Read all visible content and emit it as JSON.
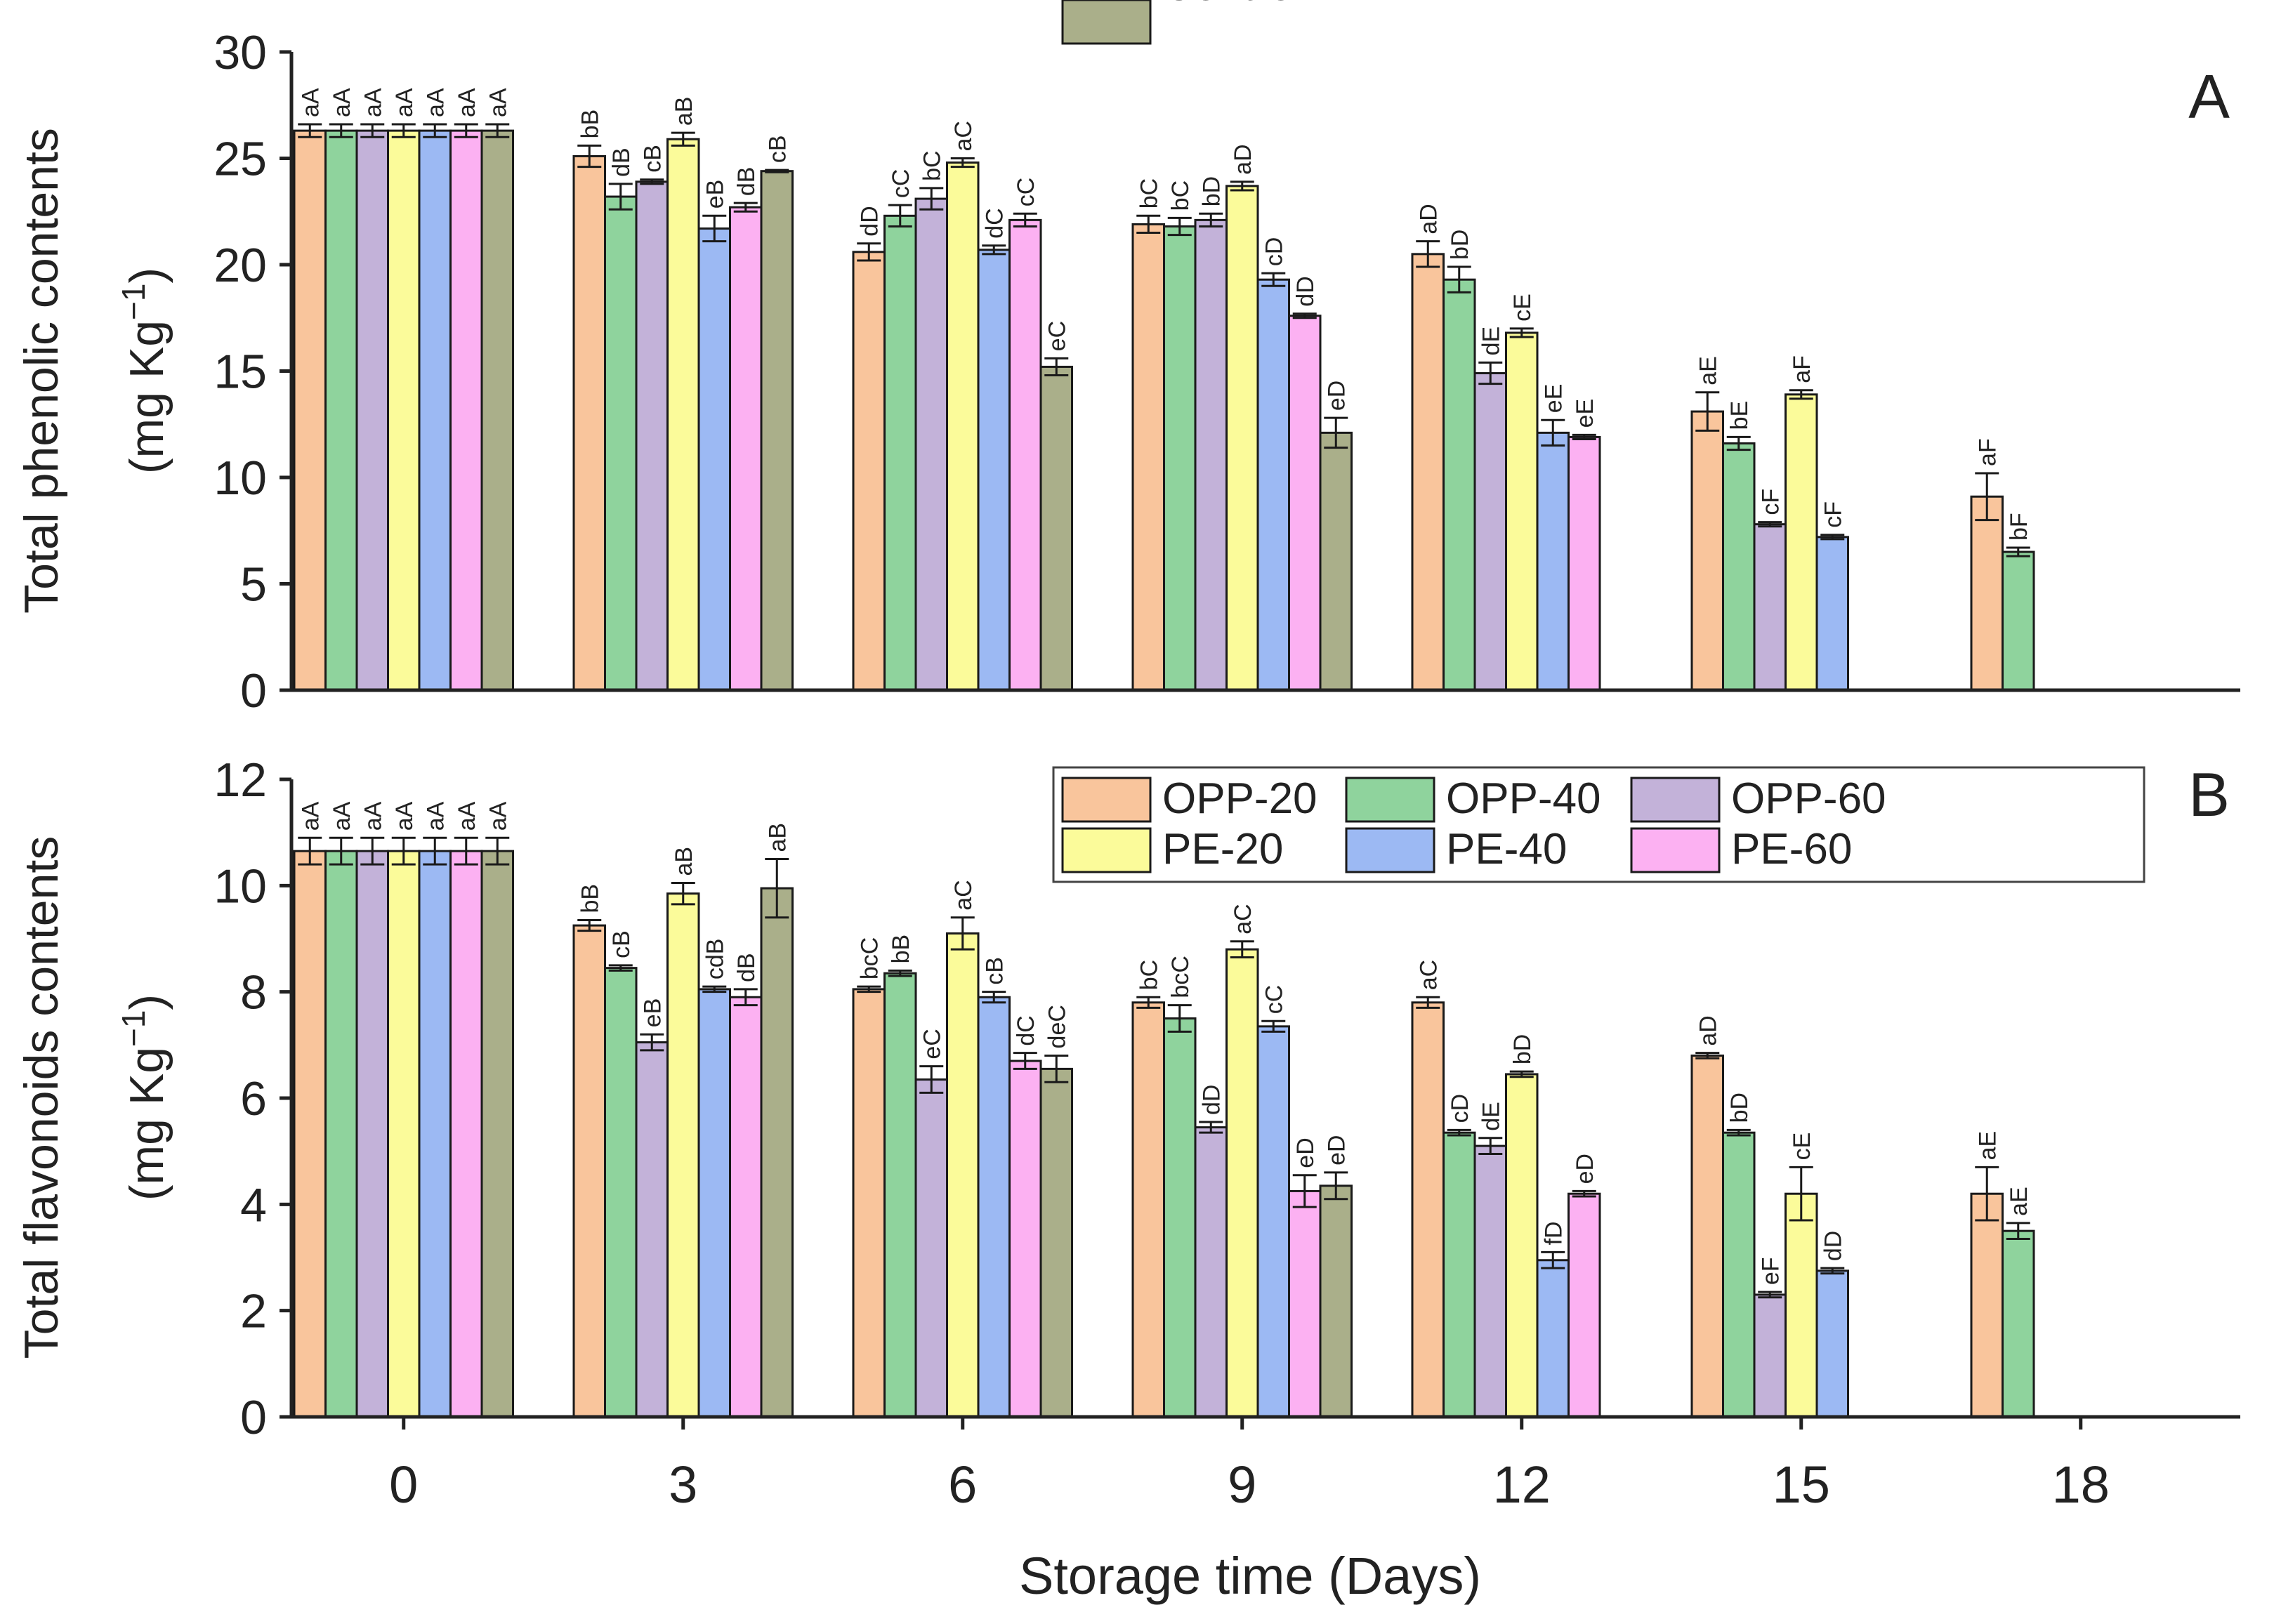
{
  "figure": {
    "xlabel": "Storage time (Days)",
    "days": [
      "0",
      "3",
      "6",
      "9",
      "12",
      "15",
      "18"
    ],
    "treatments": [
      "OPP-20",
      "OPP-40",
      "OPP-60",
      "PE-20",
      "PE-40",
      "PE-60",
      "Control"
    ],
    "colors": {
      "OPP-20": "#f9c59c",
      "OPP-40": "#8fd39d",
      "OPP-60": "#c3b2d9",
      "PE-20": "#fbfb9a",
      "PE-40": "#9cb9f3",
      "PE-60": "#fcb1f2",
      "Control": "#aaaf8a"
    }
  },
  "chart_data": [
    {
      "type": "bar",
      "panel": "A",
      "ylabel_line1": "Total phenolic contents",
      "ylabel_line2": "(mg Kg",
      "ylabel_sup": "−1",
      "ylabel_close": ")",
      "ylim": [
        0,
        30
      ],
      "yticks": [
        0,
        5,
        10,
        15,
        20,
        25,
        30
      ],
      "categories": [
        "0",
        "3",
        "6",
        "9",
        "12",
        "15",
        "18"
      ],
      "series": [
        {
          "name": "OPP-20",
          "values": [
            26.3,
            25.1,
            20.6,
            21.9,
            20.5,
            13.1,
            9.1
          ],
          "errors": [
            0.3,
            0.5,
            0.4,
            0.4,
            0.6,
            0.9,
            1.1
          ],
          "labels": [
            "aA",
            "bB",
            "dD",
            "bC",
            "aD",
            "aE",
            "aF"
          ]
        },
        {
          "name": "OPP-40",
          "values": [
            26.3,
            23.2,
            22.3,
            21.8,
            19.3,
            11.6,
            6.5
          ],
          "errors": [
            0.3,
            0.6,
            0.5,
            0.4,
            0.6,
            0.3,
            0.2
          ],
          "labels": [
            "aA",
            "dB",
            "cC",
            "bC",
            "bD",
            "bE",
            "bF"
          ]
        },
        {
          "name": "OPP-60",
          "values": [
            26.3,
            23.9,
            23.1,
            22.1,
            14.9,
            7.8,
            null
          ],
          "errors": [
            0.3,
            0.1,
            0.5,
            0.3,
            0.5,
            0.1,
            null
          ],
          "labels": [
            "aA",
            "cB",
            "bC",
            "bD",
            "dE",
            "cF",
            ""
          ]
        },
        {
          "name": "PE-20",
          "values": [
            26.3,
            25.9,
            24.8,
            23.7,
            16.8,
            13.9,
            null
          ],
          "errors": [
            0.3,
            0.3,
            0.2,
            0.2,
            0.2,
            0.2,
            null
          ],
          "labels": [
            "aA",
            "aB",
            "aC",
            "aD",
            "cE",
            "aF",
            ""
          ]
        },
        {
          "name": "PE-40",
          "values": [
            26.3,
            21.7,
            20.7,
            19.3,
            12.1,
            7.2,
            null
          ],
          "errors": [
            0.3,
            0.6,
            0.2,
            0.3,
            0.6,
            0.1,
            null
          ],
          "labels": [
            "aA",
            "eB",
            "dC",
            "cD",
            "eE",
            "cF",
            ""
          ]
        },
        {
          "name": "PE-60",
          "values": [
            26.3,
            22.7,
            22.1,
            17.6,
            11.9,
            null,
            null
          ],
          "errors": [
            0.3,
            0.2,
            0.3,
            0.1,
            0.1,
            null,
            null
          ],
          "labels": [
            "aA",
            "dB",
            "cC",
            "dD",
            "eE",
            "",
            ""
          ]
        },
        {
          "name": "Control",
          "values": [
            26.3,
            24.4,
            15.2,
            12.1,
            null,
            null,
            null
          ],
          "errors": [
            0.3,
            0.05,
            0.4,
            0.7,
            null,
            null,
            null
          ],
          "labels": [
            "aA",
            "cB",
            "eC",
            "eD",
            "",
            "",
            ""
          ]
        }
      ]
    },
    {
      "type": "bar",
      "panel": "B",
      "ylabel_line1": "Total flavonoids contents",
      "ylabel_line2": "(mg Kg",
      "ylabel_sup": "−1",
      "ylabel_close": ")",
      "ylim": [
        0,
        12
      ],
      "yticks": [
        0,
        2,
        4,
        6,
        8,
        10,
        12
      ],
      "legend_position": "top-right",
      "categories": [
        "0",
        "3",
        "6",
        "9",
        "12",
        "15",
        "18"
      ],
      "series": [
        {
          "name": "OPP-20",
          "values": [
            10.65,
            9.25,
            8.05,
            7.8,
            7.8,
            6.8,
            4.2
          ],
          "errors": [
            0.25,
            0.1,
            0.05,
            0.1,
            0.1,
            0.05,
            0.5
          ],
          "labels": [
            "aA",
            "bB",
            "bcC",
            "bC",
            "aC",
            "aD",
            "aE"
          ]
        },
        {
          "name": "OPP-40",
          "values": [
            10.65,
            8.45,
            8.35,
            7.5,
            5.35,
            5.35,
            3.5
          ],
          "errors": [
            0.25,
            0.05,
            0.05,
            0.25,
            0.05,
            0.05,
            0.15
          ],
          "labels": [
            "aA",
            "cB",
            "bB",
            "bcC",
            "cD",
            "bD",
            "aE"
          ]
        },
        {
          "name": "OPP-60",
          "values": [
            10.65,
            7.05,
            6.35,
            5.45,
            5.1,
            2.3,
            null
          ],
          "errors": [
            0.25,
            0.15,
            0.25,
            0.1,
            0.15,
            0.05,
            null
          ],
          "labels": [
            "aA",
            "eB",
            "eC",
            "dD",
            "dE",
            "eF",
            ""
          ]
        },
        {
          "name": "PE-20",
          "values": [
            10.65,
            9.85,
            9.1,
            8.8,
            6.45,
            4.2,
            null
          ],
          "errors": [
            0.25,
            0.2,
            0.3,
            0.15,
            0.05,
            0.5,
            null
          ],
          "labels": [
            "aA",
            "aB",
            "aC",
            "aC",
            "bD",
            "cE",
            ""
          ]
        },
        {
          "name": "PE-40",
          "values": [
            10.65,
            8.05,
            7.9,
            7.35,
            2.95,
            2.75,
            null
          ],
          "errors": [
            0.25,
            0.05,
            0.1,
            0.1,
            0.15,
            0.05,
            null
          ],
          "labels": [
            "aA",
            "cdB",
            "cB",
            "cC",
            "fD",
            "dD",
            ""
          ]
        },
        {
          "name": "PE-60",
          "values": [
            10.65,
            7.9,
            6.7,
            4.25,
            4.2,
            null,
            null
          ],
          "errors": [
            0.25,
            0.15,
            0.15,
            0.3,
            0.05,
            null,
            null
          ],
          "labels": [
            "aA",
            "dB",
            "dC",
            "eD",
            "eD",
            "",
            ""
          ]
        },
        {
          "name": "Control",
          "values": [
            10.65,
            9.95,
            6.55,
            4.35,
            null,
            null,
            null
          ],
          "errors": [
            0.25,
            0.55,
            0.25,
            0.25,
            null,
            null,
            null
          ],
          "labels": [
            "aA",
            "aB",
            "deC",
            "eD",
            "",
            "",
            ""
          ]
        }
      ]
    }
  ]
}
